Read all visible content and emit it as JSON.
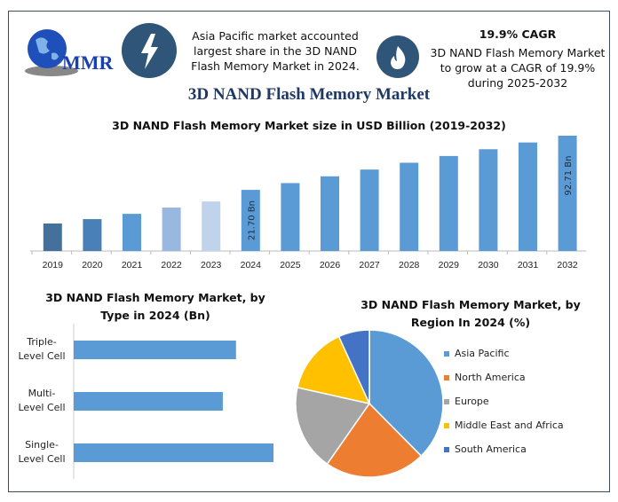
{
  "header": {
    "logo_text": "MMR",
    "icon_left": "lightning-bolt-icon",
    "icon_right": "flame-icon",
    "highlight_text": "Asia Pacific market accounted largest share in the 3D NAND Flash Memory Market in 2024.",
    "highlight_lines": [
      "Asia Pacific market accounted",
      "largest share in the 3D NAND",
      "Flash Memory Market in 2024."
    ],
    "cagr_title": "19.9% CAGR",
    "cagr_lines": [
      "3D NAND Flash Memory Market",
      "to grow at a CAGR of 19.9%",
      "during 2025-2032"
    ],
    "main_title": "3D NAND Flash Memory Market"
  },
  "colors": {
    "accent": "#5b9bd5",
    "dark_blue": "#2f5678",
    "title_blue": "#203864"
  },
  "chart_data": [
    {
      "type": "bar",
      "title": "3D NAND Flash Memory Market size in USD Billion (2019-2032)",
      "categories": [
        "2019",
        "2020",
        "2021",
        "2022",
        "2023",
        "2024",
        "2025",
        "2026",
        "2027",
        "2028",
        "2029",
        "2030",
        "2031",
        "2032"
      ],
      "values": [
        8.8,
        9.9,
        11.4,
        13.5,
        15.9,
        21.7,
        26.0,
        31.2,
        37.4,
        44.9,
        53.8,
        64.5,
        77.3,
        92.71
      ],
      "bar_colors": [
        "#44719c",
        "#4a80b8",
        "#5b9bd5",
        "#98b8e0",
        "#c0d3ec",
        "#5b9bd5",
        "#5b9bd5",
        "#5b9bd5",
        "#5b9bd5",
        "#5b9bd5",
        "#5b9bd5",
        "#5b9bd5",
        "#5b9bd5",
        "#5b9bd5"
      ],
      "data_labels": {
        "2024": "21.70 Bn",
        "2032": "92.71 Bn"
      },
      "yscale": "log",
      "grid": false,
      "xlabel": "",
      "ylabel": ""
    },
    {
      "type": "bar",
      "orientation": "horizontal",
      "title_lines": [
        "3D NAND Flash Memory Market, by",
        "Type in 2024 (Bn)"
      ],
      "categories": [
        [
          "Triple-",
          "Level Cell"
        ],
        [
          "Multi-",
          "Level Cell"
        ],
        [
          "Single-",
          "Level Cell"
        ]
      ],
      "values": [
        6.89,
        6.33,
        8.48
      ],
      "color": "#5b9bd5",
      "grid": false
    },
    {
      "type": "pie",
      "title_lines": [
        "3D NAND Flash Memory Market, by",
        "Region In 2024 (%)"
      ],
      "labels": [
        "Asia Pacific",
        "North America",
        "Europe",
        "Middle East and Africa",
        "South America"
      ],
      "values": [
        37.6,
        22.1,
        18.8,
        14.7,
        6.8
      ],
      "colors": [
        "#5b9bd5",
        "#ed7d31",
        "#a5a5a5",
        "#ffc000",
        "#4472c4"
      ],
      "legend": "right"
    }
  ]
}
